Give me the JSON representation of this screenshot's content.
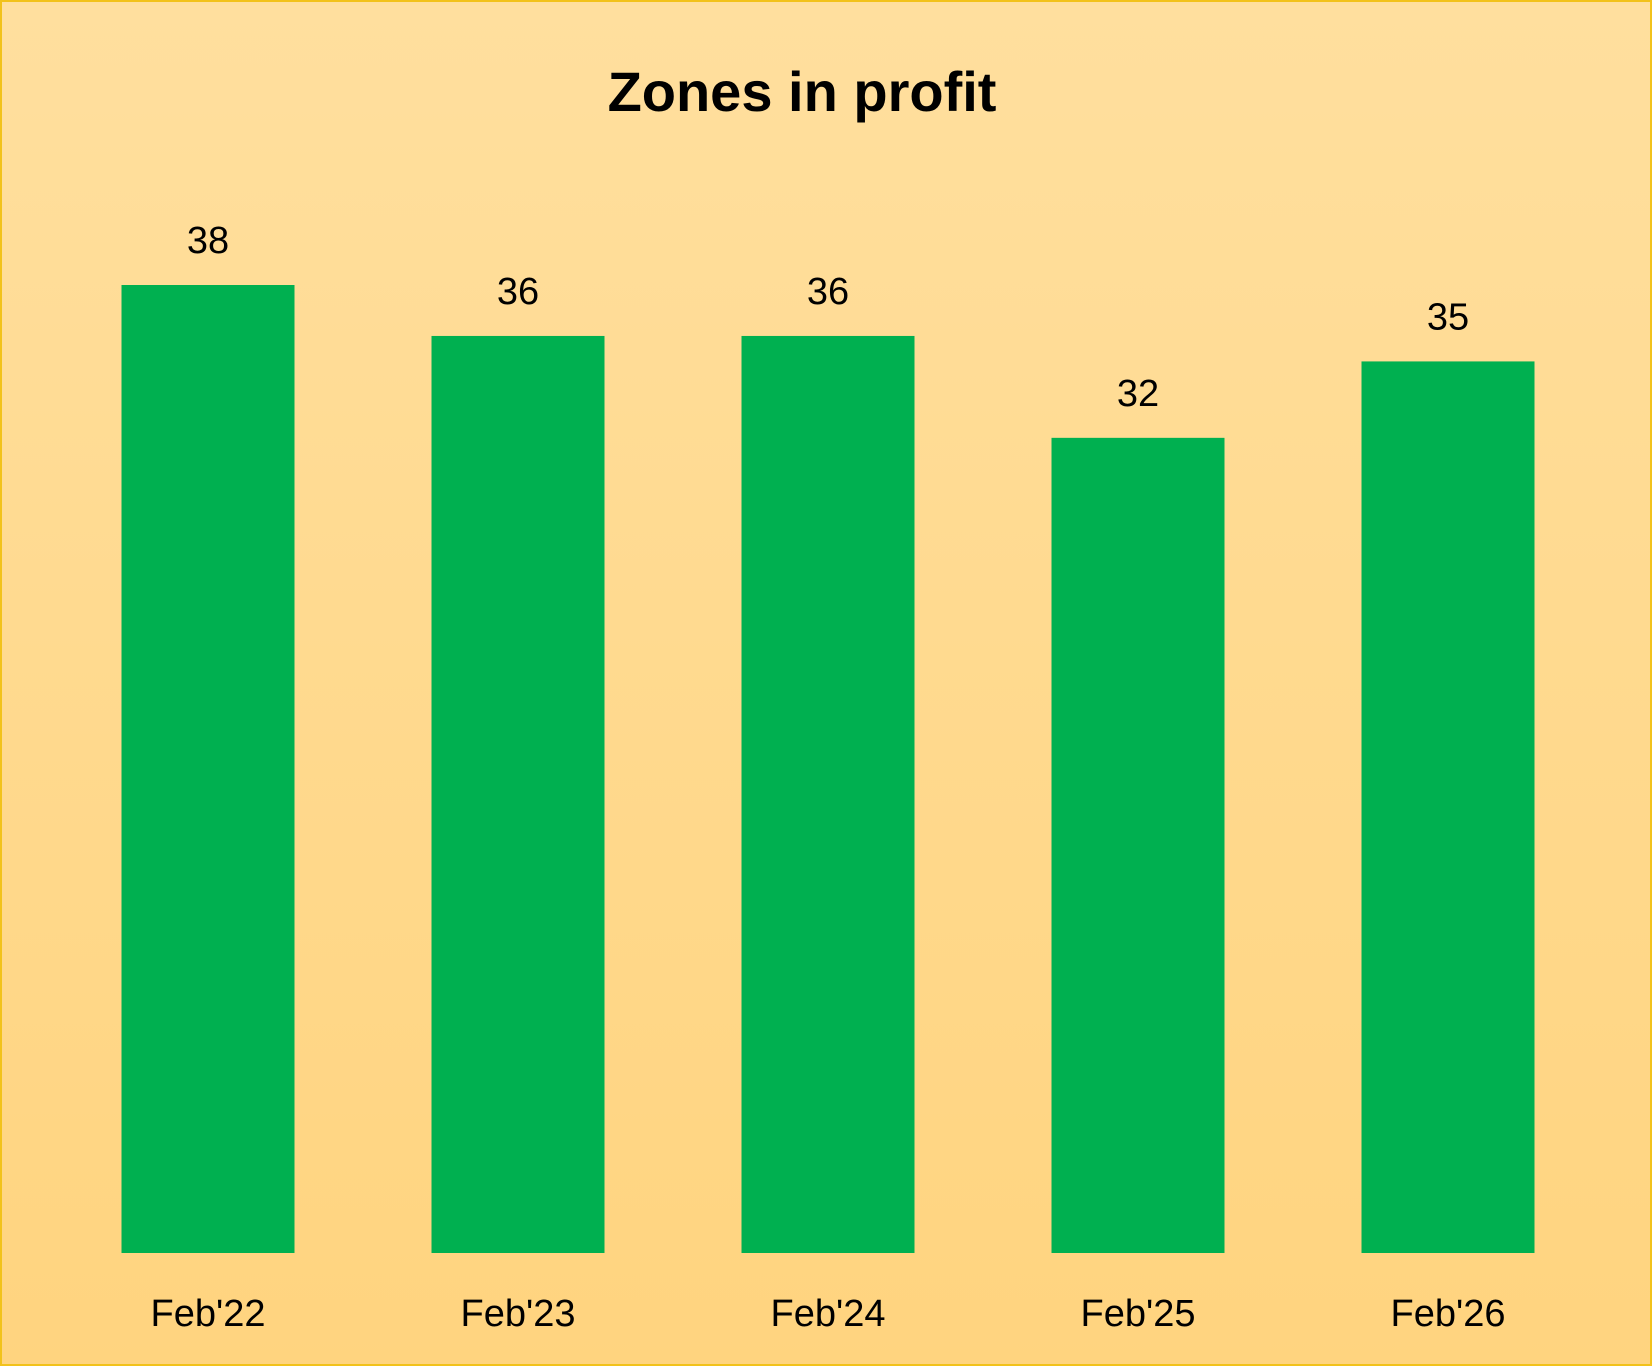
{
  "chart_data": {
    "type": "bar",
    "title": "Zones in profit",
    "xlabel": "",
    "ylabel": "",
    "categories": [
      "Feb'22",
      "Feb'23",
      "Feb'24",
      "Feb'25",
      "Feb'26"
    ],
    "values": [
      38,
      36,
      36,
      32,
      35
    ],
    "data_labels": [
      "38",
      "36",
      "36",
      "32",
      "35"
    ],
    "bar_color": "#00b050",
    "background_color": "#ffd98c",
    "border_color": "#f2c21b",
    "grid": false,
    "legend": "none",
    "y_axis_visible": false
  }
}
